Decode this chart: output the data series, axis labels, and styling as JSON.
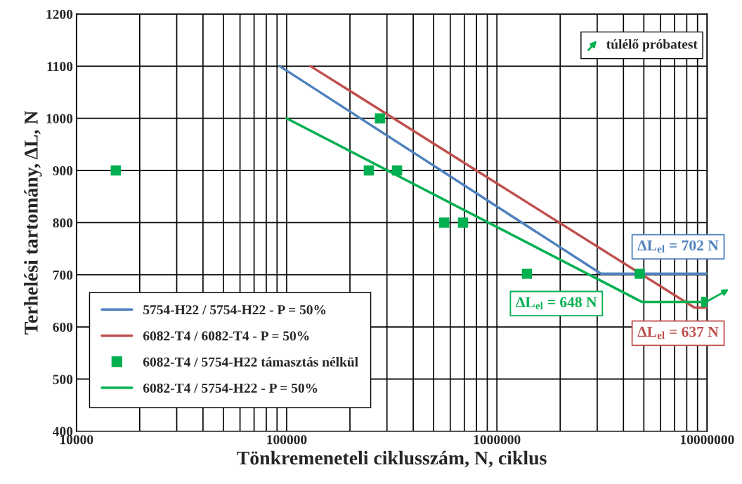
{
  "chart_data": {
    "type": "line",
    "xlabel": "Tönkremeneteli ciklusszám, N, ciklus",
    "ylabel": "Terhelési tartomány, ΔL, N",
    "log": "x",
    "xlim": [
      10000,
      10000000
    ],
    "xticks": [
      10000,
      100000,
      1000000,
      10000000
    ],
    "ylim": [
      400,
      1200
    ],
    "yticks": [
      400,
      500,
      600,
      700,
      800,
      900,
      1000,
      1100,
      1200
    ],
    "grid": true,
    "legend": "bottom left",
    "series": [
      {
        "name": "5754-H22 / 5754-H22 - P = 50%",
        "color": "#4f81bd",
        "x": [
          92700,
          3130000,
          10000000
        ],
        "values": [
          1100,
          702,
          702
        ]
      },
      {
        "name": "6082-T4 / 6082-T4 - P = 50%",
        "color": "#c0504d",
        "x": [
          130000,
          8700000,
          10000000
        ],
        "values": [
          1100,
          637,
          637
        ]
      },
      {
        "name": "6082-T4 / 5754-H22 támasztás nélkül",
        "type": "scatter",
        "marker": "square",
        "color": "#00b050",
        "x": [
          15400,
          246000,
          278000,
          335000,
          561000,
          690000,
          1390000,
          4780000,
          9900000
        ],
        "values": [
          900,
          900,
          1000,
          900,
          800,
          800,
          702,
          702,
          648
        ]
      },
      {
        "name": "6082-T4 / 5754-H22 - P = 50%",
        "color": "#00b050",
        "x": [
          100000,
          4890000,
          10000000
        ],
        "values": [
          1000,
          648,
          648
        ]
      }
    ],
    "annotations": [
      "ΔL$_{el}$ = 702 N",
      "ΔL$_{el}$ = 637 N",
      "ΔL$_{el}$ = 648 N",
      "túlélő próbatest"
    ]
  }
}
